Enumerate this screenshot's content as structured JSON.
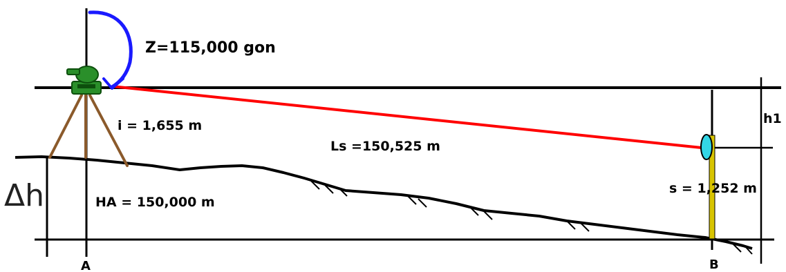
{
  "labels": {
    "zenith": "Z=115,000 gon",
    "instrument_height": "i = 1,655 m",
    "slope_distance": "Ls =150,525 m",
    "height_a": "HA = 150,000 m",
    "delta_h": "Δh",
    "h1": "h1",
    "signal_height": "s = 1,252 m",
    "point_a": "A",
    "point_b": "B"
  },
  "colors": {
    "sight_line": "#ff0000",
    "zenith_arc": "#1a1aff",
    "instrument": "#2a8f2a",
    "tripod": "#8b5a2b",
    "reflector": "#33d6e6",
    "staff": "#d8c400",
    "lines": "#000000"
  }
}
